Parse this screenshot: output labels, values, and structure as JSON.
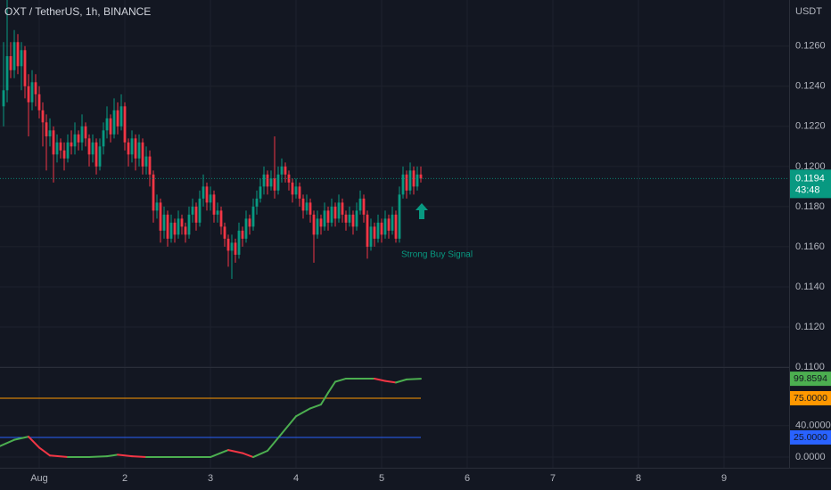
{
  "chart_data": [
    {
      "type": "candlestick",
      "title": "OXT / TetherUS, 1h, BINANCE",
      "unit": "USDT",
      "up_color": "#089981",
      "down_color": "#f23645",
      "last_price": 0.1194,
      "countdown": "43:48",
      "annotation": "Strong Buy Signal",
      "xlim": [
        -11,
        210.25
      ],
      "xticks": [
        {
          "value": 0,
          "label": "Aug"
        },
        {
          "value": 24,
          "label": "2"
        },
        {
          "value": 48,
          "label": "3"
        },
        {
          "value": 72,
          "label": "4"
        },
        {
          "value": 96,
          "label": "5"
        },
        {
          "value": 120,
          "label": "6"
        },
        {
          "value": 144,
          "label": "7"
        },
        {
          "value": 168,
          "label": "8"
        },
        {
          "value": 192,
          "label": "9"
        }
      ],
      "ylim": [
        0.11,
        0.1283
      ],
      "yticks": [
        {
          "value": 0.11,
          "label": "0.1100"
        },
        {
          "value": 0.112,
          "label": "0.1120"
        },
        {
          "value": 0.114,
          "label": "0.1140"
        },
        {
          "value": 0.116,
          "label": "0.1160"
        },
        {
          "value": 0.118,
          "label": "0.1180"
        },
        {
          "value": 0.12,
          "label": "0.1200"
        },
        {
          "value": 0.122,
          "label": "0.1220"
        },
        {
          "value": 0.124,
          "label": "0.1240"
        },
        {
          "value": 0.126,
          "label": "0.1260"
        }
      ],
      "x": [
        -10,
        -9,
        -8,
        -7,
        -6,
        -5,
        -4,
        -3,
        -2,
        -1,
        0,
        1,
        2,
        3,
        4,
        5,
        6,
        7,
        8,
        9,
        10,
        11,
        12,
        13,
        14,
        15,
        16,
        17,
        18,
        19,
        20,
        21,
        22,
        23,
        24,
        25,
        26,
        27,
        28,
        29,
        30,
        31,
        32,
        33,
        34,
        35,
        36,
        37,
        38,
        39,
        40,
        41,
        42,
        43,
        44,
        45,
        46,
        47,
        48,
        49,
        50,
        51,
        52,
        53,
        54,
        55,
        56,
        57,
        58,
        59,
        60,
        61,
        62,
        63,
        64,
        65,
        66,
        67,
        68,
        69,
        70,
        71,
        72,
        73,
        74,
        75,
        76,
        77,
        78,
        79,
        80,
        81,
        82,
        83,
        84,
        85,
        86,
        87,
        88,
        89,
        90,
        91,
        92,
        93,
        94,
        95,
        96,
        97,
        98,
        99,
        100,
        101,
        102,
        103,
        104,
        105,
        106,
        107
      ],
      "values": [
        [
          0.123,
          0.1262,
          0.122,
          0.1238
        ],
        [
          0.1238,
          0.1283,
          0.1232,
          0.1255
        ],
        [
          0.1255,
          0.1262,
          0.1244,
          0.1248
        ],
        [
          0.1248,
          0.1268,
          0.1244,
          0.1262
        ],
        [
          0.1262,
          0.1266,
          0.1246,
          0.125
        ],
        [
          0.125,
          0.1262,
          0.1238,
          0.1258
        ],
        [
          0.1258,
          0.126,
          0.1234,
          0.124
        ],
        [
          0.124,
          0.1246,
          0.1215,
          0.1232
        ],
        [
          0.1232,
          0.1248,
          0.1228,
          0.1242
        ],
        [
          0.1242,
          0.1246,
          0.123,
          0.1236
        ],
        [
          0.1236,
          0.124,
          0.1224,
          0.1228
        ],
        [
          0.1228,
          0.1232,
          0.121,
          0.1222
        ],
        [
          0.1222,
          0.1226,
          0.1198,
          0.1215
        ],
        [
          0.1215,
          0.1224,
          0.121,
          0.1218
        ],
        [
          0.1218,
          0.122,
          0.1192,
          0.1206
        ],
        [
          0.1206,
          0.1216,
          0.1202,
          0.1212
        ],
        [
          0.1212,
          0.1214,
          0.1204,
          0.1208
        ],
        [
          0.1208,
          0.1212,
          0.1198,
          0.1204
        ],
        [
          0.1204,
          0.1216,
          0.1202,
          0.1212
        ],
        [
          0.1212,
          0.1218,
          0.1206,
          0.121
        ],
        [
          0.121,
          0.1222,
          0.1206,
          0.1216
        ],
        [
          0.1216,
          0.1218,
          0.1208,
          0.1212
        ],
        [
          0.1212,
          0.1226,
          0.1208,
          0.122
        ],
        [
          0.122,
          0.1222,
          0.121,
          0.1214
        ],
        [
          0.1214,
          0.1216,
          0.12,
          0.1206
        ],
        [
          0.1206,
          0.1216,
          0.1202,
          0.1212
        ],
        [
          0.1212,
          0.1214,
          0.1196,
          0.12
        ],
        [
          0.12,
          0.1214,
          0.1198,
          0.121
        ],
        [
          0.121,
          0.1222,
          0.1206,
          0.1218
        ],
        [
          0.1218,
          0.123,
          0.1214,
          0.1224
        ],
        [
          0.1224,
          0.1226,
          0.1212,
          0.1216
        ],
        [
          0.1216,
          0.1234,
          0.1214,
          0.1228
        ],
        [
          0.1228,
          0.1232,
          0.1216,
          0.122
        ],
        [
          0.122,
          0.1236,
          0.1218,
          0.123
        ],
        [
          0.123,
          0.1232,
          0.1208,
          0.1212
        ],
        [
          0.1212,
          0.1214,
          0.12,
          0.1206
        ],
        [
          0.1206,
          0.1218,
          0.1202,
          0.1214
        ],
        [
          0.1214,
          0.1216,
          0.1198,
          0.1204
        ],
        [
          0.1204,
          0.1216,
          0.12,
          0.1212
        ],
        [
          0.1212,
          0.1214,
          0.1196,
          0.12
        ],
        [
          0.12,
          0.121,
          0.1196,
          0.1205
        ],
        [
          0.1205,
          0.1208,
          0.119,
          0.1196
        ],
        [
          0.1196,
          0.1198,
          0.1172,
          0.1178
        ],
        [
          0.1178,
          0.1186,
          0.1174,
          0.1182
        ],
        [
          0.1182,
          0.1184,
          0.1162,
          0.1168
        ],
        [
          0.1168,
          0.118,
          0.1164,
          0.1176
        ],
        [
          0.1176,
          0.1178,
          0.116,
          0.1164
        ],
        [
          0.1164,
          0.1176,
          0.1162,
          0.1172
        ],
        [
          0.1172,
          0.1174,
          0.1162,
          0.1166
        ],
        [
          0.1166,
          0.1178,
          0.1164,
          0.1174
        ],
        [
          0.1174,
          0.1176,
          0.1166,
          0.117
        ],
        [
          0.117,
          0.1172,
          0.1162,
          0.1166
        ],
        [
          0.1166,
          0.118,
          0.1164,
          0.1176
        ],
        [
          0.1176,
          0.1184,
          0.1172,
          0.118
        ],
        [
          0.118,
          0.1182,
          0.1168,
          0.1172
        ],
        [
          0.1172,
          0.1188,
          0.117,
          0.1184
        ],
        [
          0.1184,
          0.1196,
          0.118,
          0.119
        ],
        [
          0.119,
          0.1192,
          0.1178,
          0.1182
        ],
        [
          0.1182,
          0.119,
          0.1178,
          0.1186
        ],
        [
          0.1186,
          0.1188,
          0.1172,
          0.1176
        ],
        [
          0.1176,
          0.1182,
          0.1172,
          0.1178
        ],
        [
          0.1178,
          0.118,
          0.1166,
          0.117
        ],
        [
          0.117,
          0.1172,
          0.116,
          0.1164
        ],
        [
          0.1164,
          0.1166,
          0.115,
          0.1158
        ],
        [
          0.1158,
          0.1166,
          0.1144,
          0.1162
        ],
        [
          0.1162,
          0.1164,
          0.1152,
          0.1156
        ],
        [
          0.1156,
          0.1172,
          0.1154,
          0.1168
        ],
        [
          0.1168,
          0.117,
          0.116,
          0.1164
        ],
        [
          0.1164,
          0.1178,
          0.1162,
          0.1174
        ],
        [
          0.1174,
          0.1176,
          0.1166,
          0.117
        ],
        [
          0.117,
          0.1184,
          0.1168,
          0.118
        ],
        [
          0.118,
          0.1188,
          0.1176,
          0.1184
        ],
        [
          0.1184,
          0.1194,
          0.1182,
          0.119
        ],
        [
          0.119,
          0.12,
          0.1186,
          0.1196
        ],
        [
          0.1196,
          0.1198,
          0.1186,
          0.119
        ],
        [
          0.119,
          0.1198,
          0.1188,
          0.1194
        ],
        [
          0.1194,
          0.1215,
          0.1184,
          0.1188
        ],
        [
          0.1188,
          0.12,
          0.1186,
          0.1196
        ],
        [
          0.1196,
          0.1204,
          0.1192,
          0.12
        ],
        [
          0.12,
          0.1202,
          0.1192,
          0.1196
        ],
        [
          0.1196,
          0.1198,
          0.1188,
          0.1192
        ],
        [
          0.1192,
          0.1194,
          0.1182,
          0.1186
        ],
        [
          0.1186,
          0.1194,
          0.1184,
          0.119
        ],
        [
          0.119,
          0.1192,
          0.118,
          0.1184
        ],
        [
          0.1184,
          0.1186,
          0.1174,
          0.1178
        ],
        [
          0.1178,
          0.1186,
          0.1176,
          0.1182
        ],
        [
          0.1182,
          0.1184,
          0.1172,
          0.1176
        ],
        [
          0.1176,
          0.1178,
          0.1152,
          0.1166
        ],
        [
          0.1166,
          0.1178,
          0.1164,
          0.1174
        ],
        [
          0.1174,
          0.1176,
          0.1166,
          0.117
        ],
        [
          0.117,
          0.1182,
          0.1168,
          0.1178
        ],
        [
          0.1178,
          0.118,
          0.1168,
          0.1172
        ],
        [
          0.1172,
          0.1184,
          0.117,
          0.118
        ],
        [
          0.118,
          0.1182,
          0.117,
          0.1174
        ],
        [
          0.1174,
          0.1186,
          0.1172,
          0.1182
        ],
        [
          0.1182,
          0.1184,
          0.1172,
          0.1176
        ],
        [
          0.1176,
          0.1178,
          0.1168,
          0.1172
        ],
        [
          0.1172,
          0.118,
          0.117,
          0.1176
        ],
        [
          0.1176,
          0.1178,
          0.1166,
          0.117
        ],
        [
          0.117,
          0.1182,
          0.1168,
          0.1178
        ],
        [
          0.1178,
          0.1188,
          0.1176,
          0.1184
        ],
        [
          0.1184,
          0.1186,
          0.1172,
          0.1176
        ],
        [
          0.1176,
          0.1178,
          0.1154,
          0.116
        ],
        [
          0.116,
          0.1174,
          0.1158,
          0.117
        ],
        [
          0.117,
          0.1172,
          0.116,
          0.1164
        ],
        [
          0.1164,
          0.1176,
          0.1162,
          0.1172
        ],
        [
          0.1172,
          0.1174,
          0.1162,
          0.1166
        ],
        [
          0.1166,
          0.1178,
          0.1164,
          0.1174
        ],
        [
          0.1174,
          0.1176,
          0.1164,
          0.1168
        ],
        [
          0.1168,
          0.118,
          0.1166,
          0.1176
        ],
        [
          0.1176,
          0.1178,
          0.1162,
          0.1164
        ],
        [
          0.1164,
          0.119,
          0.1162,
          0.1186
        ],
        [
          0.1186,
          0.12,
          0.1184,
          0.1196
        ],
        [
          0.1196,
          0.1198,
          0.1184,
          0.1188
        ],
        [
          0.1188,
          0.1202,
          0.1186,
          0.1198
        ],
        [
          0.1198,
          0.12,
          0.1186,
          0.119
        ],
        [
          0.119,
          0.12,
          0.1188,
          0.1196
        ],
        [
          0.1196,
          0.12,
          0.1192,
          0.1194
        ]
      ]
    },
    {
      "type": "line",
      "up_color": "#4caf50",
      "down_color": "#f23645",
      "xlim": [
        -11,
        210.25
      ],
      "ylim": [
        -13.6,
        113.6
      ],
      "yticks": [
        {
          "value": 40,
          "label": "40.0000"
        },
        {
          "value": 0,
          "label": "0.0000"
        }
      ],
      "levels": [
        {
          "value": 75,
          "label": "75.0000",
          "color": "#ff9800"
        },
        {
          "value": 25,
          "label": "25.0000",
          "color": "#2962ff"
        }
      ],
      "x": [
        -11,
        -7,
        -3,
        0,
        3,
        8,
        14,
        19,
        22,
        26,
        30,
        40,
        48,
        53,
        57,
        60,
        64,
        68,
        72,
        76,
        79,
        81,
        83,
        86,
        90,
        94,
        97,
        100,
        103,
        107
      ],
      "values": [
        14,
        22,
        26,
        12,
        2,
        0,
        0,
        1,
        3,
        1,
        0,
        0,
        0,
        9,
        5,
        0,
        8,
        30,
        52,
        62,
        67,
        82,
        96,
        100,
        100,
        100,
        97,
        95,
        99,
        99.8594
      ]
    }
  ]
}
